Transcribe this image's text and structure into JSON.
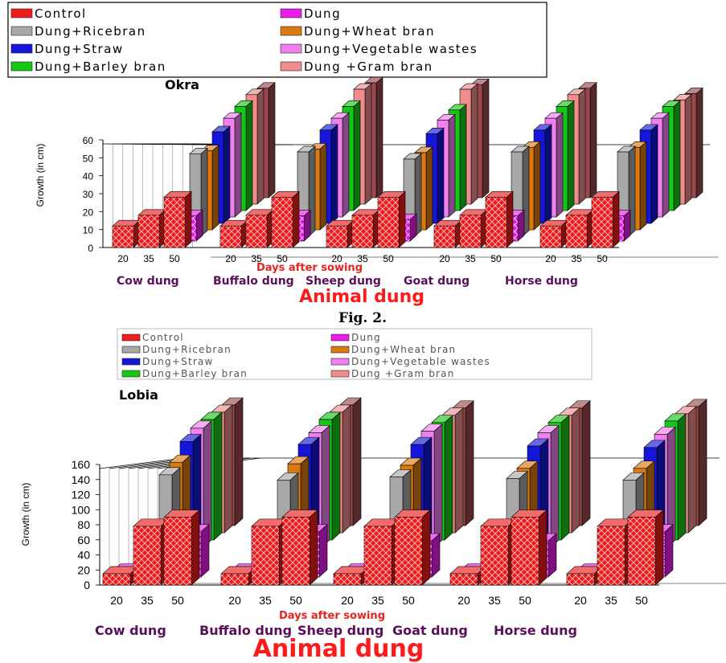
{
  "figure_caption": "Fig. 2.",
  "colors": {
    "Control": "#ee1c1c",
    "Dung": "#e81de8",
    "Dung+Ricebran": "#a8a8a8",
    "Dung+Wheat bran": "#d9790f",
    "Dung+Straw": "#1616d8",
    "Dung+Vegetable wastes": "#f080f0",
    "Dung+Barley bran": "#16c816",
    "Dung +Gram bran": "#f08c8c",
    "extra": "#9a4a4a"
  },
  "chart_data": [
    {
      "type": "bar",
      "title": "Okra",
      "ylabel": "Growth (in cm)",
      "xlabel": "Days after sowing",
      "group_axis_title": "Animal dung",
      "ylim": [
        0,
        60
      ],
      "yticks": [
        "0",
        "10",
        "20",
        "30",
        "40",
        "50",
        "60"
      ],
      "groups": [
        "Cow dung",
        "Buffalo dung",
        "Sheep dung",
        "Goat dung",
        "Horse dung"
      ],
      "days": [
        "20",
        "35",
        "50"
      ],
      "legend": [
        "Control",
        "Dung",
        "Dung+Ricebran",
        "Dung+Wheat bran",
        "Dung+Straw",
        "Dung+Vegetable wastes",
        "Dung+Barley bran",
        "Dung +Gram bran"
      ],
      "front_series": [
        {
          "name": "Control",
          "values": [
            [
              12,
              18,
              28
            ],
            [
              12,
              18,
              28
            ],
            [
              12,
              18,
              28
            ],
            [
              12,
              18,
              28
            ],
            [
              12,
              18,
              28
            ]
          ]
        },
        {
          "name": "Dung",
          "values": [
            [
              5,
              8,
              14
            ],
            [
              5,
              8,
              14
            ],
            [
              5,
              8,
              12
            ],
            [
              5,
              8,
              14
            ],
            [
              5,
              8,
              14
            ]
          ]
        }
      ],
      "back_series": [
        {
          "name": "Dung+Ricebran",
          "values": [
            46,
            47,
            43,
            47,
            47
          ]
        },
        {
          "name": "Dung+Wheat bran",
          "values": [
            44,
            45,
            43,
            46,
            46
          ]
        },
        {
          "name": "Dung+Straw",
          "values": [
            51,
            52,
            50,
            52,
            52
          ]
        },
        {
          "name": "Dung+Vegetable wastes",
          "values": [
            55,
            55,
            54,
            55,
            55
          ]
        },
        {
          "name": "Dung+Barley bran",
          "values": [
            58,
            58,
            56,
            58,
            58
          ]
        },
        {
          "name": "Dung +Gram bran",
          "values": [
            61,
            64,
            64,
            61,
            58
          ]
        },
        {
          "name": "",
          "values": [
            61,
            64,
            63,
            61,
            58
          ]
        }
      ]
    },
    {
      "type": "bar",
      "title": "Lobia",
      "ylabel": "Growth (in cm)",
      "xlabel": "Days after sowing",
      "group_axis_title": "Animal dung",
      "ylim": [
        0,
        160
      ],
      "yticks": [
        "0",
        "20",
        "40",
        "60",
        "80",
        "100",
        "120",
        "140",
        "160"
      ],
      "groups": [
        "Cow dung",
        "Buffalo dung",
        "Sheep dung",
        "Goat dung",
        "Horse dung"
      ],
      "days": [
        "20",
        "35",
        "50"
      ],
      "legend": [
        "Control",
        "Dung",
        "Dung+Ricebran",
        "Dung+Wheat bran",
        "Dung+Straw",
        "Dung+Vegetable wastes",
        "Dung+Barley bran",
        "Dung +Gram bran"
      ],
      "front_series": [
        {
          "name": "Control",
          "values": [
            [
              15,
              78,
              90
            ],
            [
              15,
              78,
              90
            ],
            [
              15,
              78,
              90
            ],
            [
              15,
              78,
              90
            ],
            [
              15,
              78,
              90
            ]
          ]
        },
        {
          "name": "Dung",
          "values": [
            [
              8,
              40,
              60
            ],
            [
              8,
              40,
              60
            ],
            [
              8,
              35,
              48
            ],
            [
              8,
              35,
              48
            ],
            [
              8,
              40,
              60
            ]
          ]
        }
      ],
      "back_series": [
        {
          "name": "Dung+Ricebran",
          "values": [
            125,
            118,
            122,
            120,
            118
          ]
        },
        {
          "name": "Dung+Wheat bran",
          "values": [
            132,
            130,
            128,
            124,
            124
          ]
        },
        {
          "name": "Dung+Straw",
          "values": [
            150,
            146,
            146,
            144,
            142
          ]
        },
        {
          "name": "Dung+Vegetable wastes",
          "values": [
            158,
            152,
            154,
            152,
            150
          ]
        },
        {
          "name": "Dung+Barley bran",
          "values": [
            160,
            160,
            156,
            156,
            158
          ]
        },
        {
          "name": "Dung +Gram bran",
          "values": [
            160,
            160,
            156,
            156,
            158
          ]
        },
        {
          "name": "",
          "values": [
            160,
            160,
            156,
            156,
            158
          ]
        }
      ]
    }
  ]
}
